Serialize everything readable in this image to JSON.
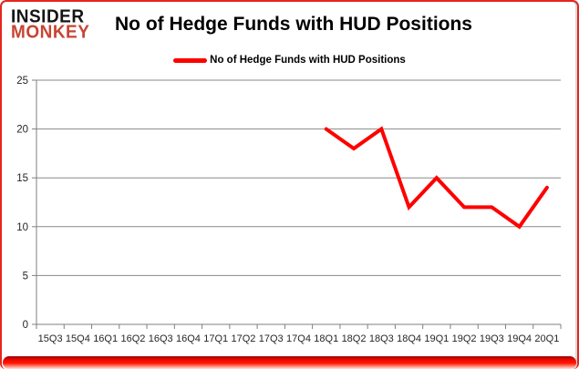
{
  "brand": {
    "line1": "INSIDER",
    "line2": "MONKEY"
  },
  "header": {
    "title": "No of Hedge Funds with HUD Positions"
  },
  "legend": {
    "label": "No of Hedge Funds with HUD Positions"
  },
  "colors": {
    "series_line": "#ff0000",
    "grid": "#8a8a8a",
    "axis": "#7f7f7f",
    "tick_text": "#262626",
    "frame_red": "#e4261f",
    "brand_black": "#151515",
    "brand_red": "#c74433"
  },
  "chart_data": {
    "type": "line",
    "title": "No of Hedge Funds with HUD Positions",
    "categories": [
      "15Q3",
      "15Q4",
      "16Q1",
      "16Q2",
      "16Q3",
      "16Q4",
      "17Q1",
      "17Q2",
      "17Q3",
      "17Q4",
      "18Q1",
      "18Q2",
      "18Q3",
      "18Q4",
      "19Q1",
      "19Q2",
      "19Q3",
      "19Q4",
      "20Q1"
    ],
    "series": [
      {
        "name": "No of Hedge Funds with HUD Positions",
        "values": [
          null,
          null,
          null,
          null,
          null,
          null,
          null,
          null,
          null,
          null,
          20,
          18,
          20,
          12,
          15,
          12,
          12,
          10,
          14
        ]
      }
    ],
    "xlabel": "",
    "ylabel": "",
    "ylim": [
      0,
      25
    ],
    "yticks": [
      0,
      5,
      10,
      15,
      20,
      25
    ],
    "grid": true,
    "legend_position": "top-center"
  }
}
